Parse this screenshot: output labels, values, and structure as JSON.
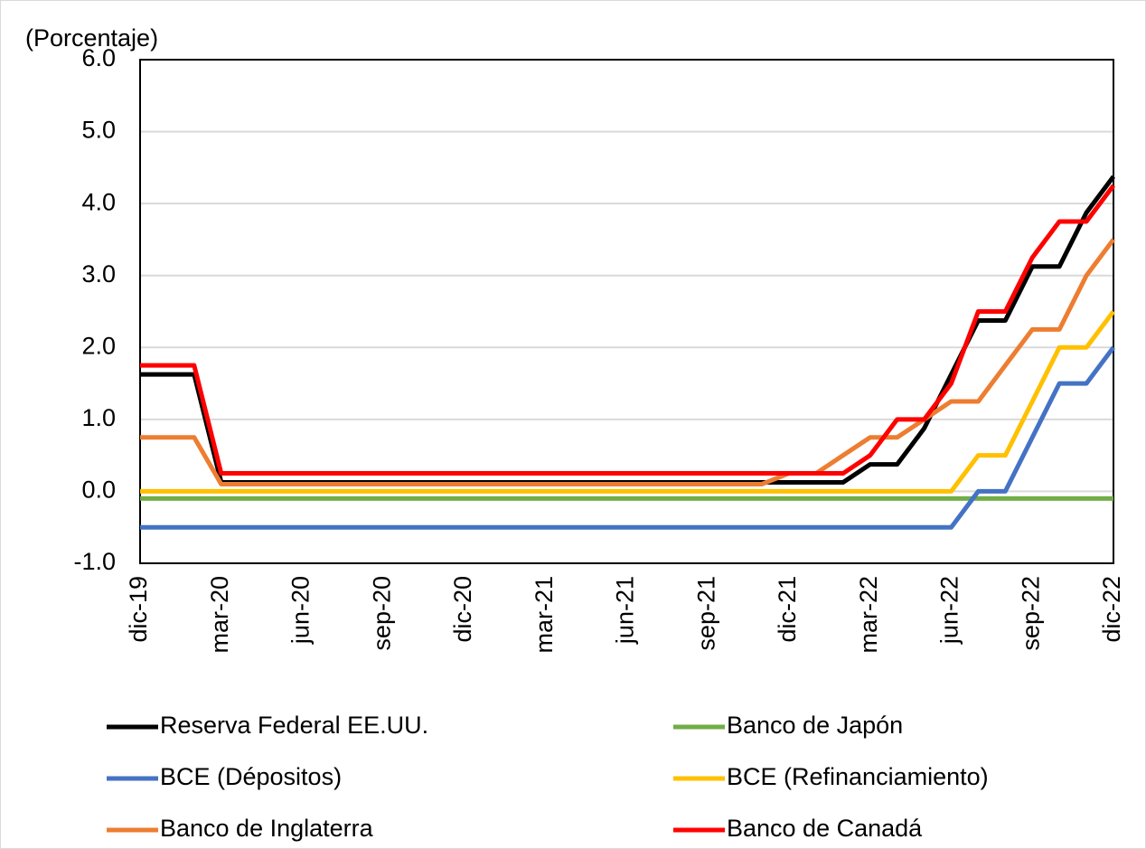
{
  "chart_data": {
    "type": "line",
    "y_label": "(Porcentaje)",
    "categories": [
      "dic-19",
      null,
      null,
      "mar-20",
      null,
      null,
      "jun-20",
      null,
      null,
      "sep-20",
      null,
      null,
      "dic-20",
      null,
      null,
      "mar-21",
      null,
      null,
      "jun-21",
      null,
      null,
      "sep-21",
      null,
      null,
      "dic-21",
      null,
      null,
      "mar-22",
      null,
      null,
      "jun-22",
      null,
      null,
      "sep-22",
      null,
      null,
      "dic-22"
    ],
    "ylim": [
      -1,
      6
    ],
    "yticks": [
      {
        "value": -1,
        "label": "-1.0"
      },
      {
        "value": 0,
        "label": "0.0"
      },
      {
        "value": 1,
        "label": "1.0"
      },
      {
        "value": 2,
        "label": "2.0"
      },
      {
        "value": 3,
        "label": "3.0"
      },
      {
        "value": 4,
        "label": "4.0"
      },
      {
        "value": 5,
        "label": "5.0"
      },
      {
        "value": 6,
        "label": "6.0"
      }
    ],
    "grid": true,
    "series": [
      {
        "name": "Reserva Federal EE.UU.",
        "color": "#000000",
        "values": [
          1.625,
          1.625,
          1.625,
          0.125,
          0.125,
          0.125,
          0.125,
          0.125,
          0.125,
          0.125,
          0.125,
          0.125,
          0.125,
          0.125,
          0.125,
          0.125,
          0.125,
          0.125,
          0.125,
          0.125,
          0.125,
          0.125,
          0.125,
          0.125,
          0.125,
          0.125,
          0.125,
          0.375,
          0.375,
          0.875,
          1.625,
          2.375,
          2.375,
          3.125,
          3.125,
          3.875,
          4.375
        ]
      },
      {
        "name": "Banco de Japón",
        "color": "#70ad47",
        "values": [
          -0.1,
          -0.1,
          -0.1,
          -0.1,
          -0.1,
          -0.1,
          -0.1,
          -0.1,
          -0.1,
          -0.1,
          -0.1,
          -0.1,
          -0.1,
          -0.1,
          -0.1,
          -0.1,
          -0.1,
          -0.1,
          -0.1,
          -0.1,
          -0.1,
          -0.1,
          -0.1,
          -0.1,
          -0.1,
          -0.1,
          -0.1,
          -0.1,
          -0.1,
          -0.1,
          -0.1,
          -0.1,
          -0.1,
          -0.1,
          -0.1,
          -0.1,
          -0.1
        ]
      },
      {
        "name": "BCE (Dépositos)",
        "color": "#4472c4",
        "values": [
          -0.5,
          -0.5,
          -0.5,
          -0.5,
          -0.5,
          -0.5,
          -0.5,
          -0.5,
          -0.5,
          -0.5,
          -0.5,
          -0.5,
          -0.5,
          -0.5,
          -0.5,
          -0.5,
          -0.5,
          -0.5,
          -0.5,
          -0.5,
          -0.5,
          -0.5,
          -0.5,
          -0.5,
          -0.5,
          -0.5,
          -0.5,
          -0.5,
          -0.5,
          -0.5,
          -0.5,
          0,
          0,
          0.75,
          1.5,
          1.5,
          2.0
        ]
      },
      {
        "name": "BCE (Refinanciamiento)",
        "color": "#ffc000",
        "values": [
          0,
          0,
          0,
          0,
          0,
          0,
          0,
          0,
          0,
          0,
          0,
          0,
          0,
          0,
          0,
          0,
          0,
          0,
          0,
          0,
          0,
          0,
          0,
          0,
          0,
          0,
          0,
          0,
          0,
          0,
          0,
          0.5,
          0.5,
          1.25,
          2.0,
          2.0,
          2.5
        ]
      },
      {
        "name": "Banco de Inglaterra",
        "color": "#ed7d31",
        "values": [
          0.75,
          0.75,
          0.75,
          0.1,
          0.1,
          0.1,
          0.1,
          0.1,
          0.1,
          0.1,
          0.1,
          0.1,
          0.1,
          0.1,
          0.1,
          0.1,
          0.1,
          0.1,
          0.1,
          0.1,
          0.1,
          0.1,
          0.1,
          0.1,
          0.25,
          0.25,
          0.5,
          0.75,
          0.75,
          1.0,
          1.25,
          1.25,
          1.75,
          2.25,
          2.25,
          3.0,
          3.5
        ]
      },
      {
        "name": "Banco de Canadá",
        "color": "#ff0000",
        "values": [
          1.75,
          1.75,
          1.75,
          0.25,
          0.25,
          0.25,
          0.25,
          0.25,
          0.25,
          0.25,
          0.25,
          0.25,
          0.25,
          0.25,
          0.25,
          0.25,
          0.25,
          0.25,
          0.25,
          0.25,
          0.25,
          0.25,
          0.25,
          0.25,
          0.25,
          0.25,
          0.25,
          0.5,
          1.0,
          1.0,
          1.5,
          2.5,
          2.5,
          3.25,
          3.75,
          3.75,
          4.25
        ]
      }
    ]
  }
}
